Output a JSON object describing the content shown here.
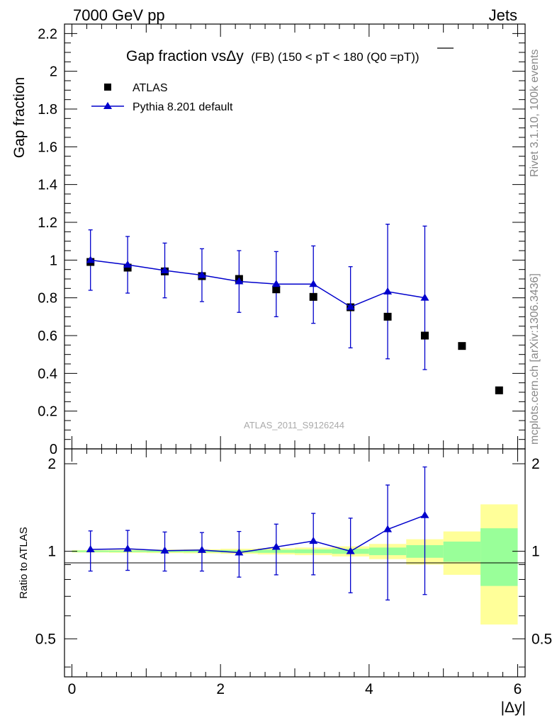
{
  "header": {
    "left": "7000 GeV pp",
    "right": "Jets"
  },
  "side_labels": {
    "rivet": "Rivet 3.1.10,  100k events",
    "mcplots": "mcplots.cern.ch [arXiv:1306.3436]"
  },
  "chart_data": {
    "type": "scatter",
    "title_main": "Gap fraction vsΔy",
    "title_sub": "(FB) (150 < pT < 180 (Q0 =",
    "title_bar": "pT",
    "title_end": "))",
    "watermark": "ATLAS_2011_S9126244",
    "xlabel": "|Δy|",
    "ylabel": "Gap fraction",
    "ratio_ylabel": "Ratio to ATLAS",
    "xlim": [
      -0.1,
      6.1
    ],
    "ylim": [
      0,
      2.25
    ],
    "ratio_ylim": [
      0.37,
      2.25
    ],
    "x_ticks": [
      "0",
      "2",
      "4",
      "6"
    ],
    "y_ticks": [
      "0",
      "0.2",
      "0.4",
      "0.6",
      "0.8",
      "1",
      "1.2",
      "1.4",
      "1.6",
      "1.8",
      "2",
      "2.2"
    ],
    "ratio_ticks": [
      "0.5",
      "1",
      "2"
    ],
    "legend": {
      "placement": "top-left",
      "data_label": "ATLAS",
      "mc_label": "Pythia 8.201 default"
    },
    "colors": {
      "data": "#000000",
      "mc": "#0000cc",
      "band_inner": "#99ff99",
      "band_outer": "#ffff99"
    },
    "data": {
      "name": "ATLAS",
      "x": [
        0.25,
        0.75,
        1.25,
        1.75,
        2.25,
        2.75,
        3.25,
        3.75,
        4.25,
        4.75,
        5.25,
        5.75
      ],
      "y": [
        0.99,
        0.96,
        0.94,
        0.915,
        0.9,
        0.845,
        0.805,
        0.75,
        0.7,
        0.6,
        0.545,
        0.31
      ]
    },
    "mc": {
      "name": "Pythia 8.201 default",
      "x": [
        0.25,
        0.75,
        1.25,
        1.75,
        2.25,
        2.75,
        3.25,
        3.75,
        4.25,
        4.75
      ],
      "y": [
        1.0,
        0.975,
        0.945,
        0.92,
        0.887,
        0.873,
        0.873,
        0.752,
        0.833,
        0.8
      ],
      "err_up": [
        1.16,
        1.125,
        1.09,
        1.06,
        1.05,
        1.045,
        1.075,
        0.965,
        1.19,
        1.18
      ],
      "err_down": [
        0.84,
        0.825,
        0.8,
        0.78,
        0.723,
        0.7,
        0.665,
        0.535,
        0.477,
        0.42
      ]
    },
    "ratio": {
      "x": [
        0.25,
        0.75,
        1.25,
        1.75,
        2.25,
        2.75,
        3.25,
        3.75,
        4.25,
        4.75
      ],
      "y": [
        1.015,
        1.02,
        1.005,
        1.01,
        0.99,
        1.035,
        1.085,
        1.0,
        1.19,
        1.33
      ],
      "err_up": [
        1.175,
        1.18,
        1.165,
        1.16,
        1.17,
        1.24,
        1.35,
        1.3,
        1.69,
        1.95
      ],
      "err_down": [
        0.855,
        0.86,
        0.855,
        0.855,
        0.815,
        0.83,
        0.83,
        0.72,
        0.68,
        0.71
      ]
    },
    "bands": {
      "x_low": [
        0,
        0.5,
        1,
        1.5,
        2,
        2.5,
        3,
        3.5,
        4,
        4.5,
        5,
        5.5
      ],
      "x_high": [
        0.5,
        1,
        1.5,
        2,
        2.5,
        3,
        3.5,
        4,
        4.5,
        5,
        5.5,
        6
      ],
      "inner_up": [
        1.006,
        1.006,
        1.007,
        1.008,
        1.01,
        1.012,
        1.015,
        1.02,
        1.03,
        1.05,
        1.08,
        1.2
      ],
      "inner_down": [
        0.994,
        0.994,
        0.993,
        0.992,
        0.99,
        0.988,
        0.985,
        0.98,
        0.97,
        0.95,
        0.92,
        0.76
      ],
      "outer_up": [
        1.01,
        1.012,
        1.014,
        1.016,
        1.02,
        1.025,
        1.03,
        1.04,
        1.06,
        1.1,
        1.17,
        1.45
      ],
      "outer_down": [
        0.99,
        0.988,
        0.986,
        0.984,
        0.98,
        0.975,
        0.97,
        0.96,
        0.94,
        0.9,
        0.83,
        0.56
      ]
    }
  }
}
